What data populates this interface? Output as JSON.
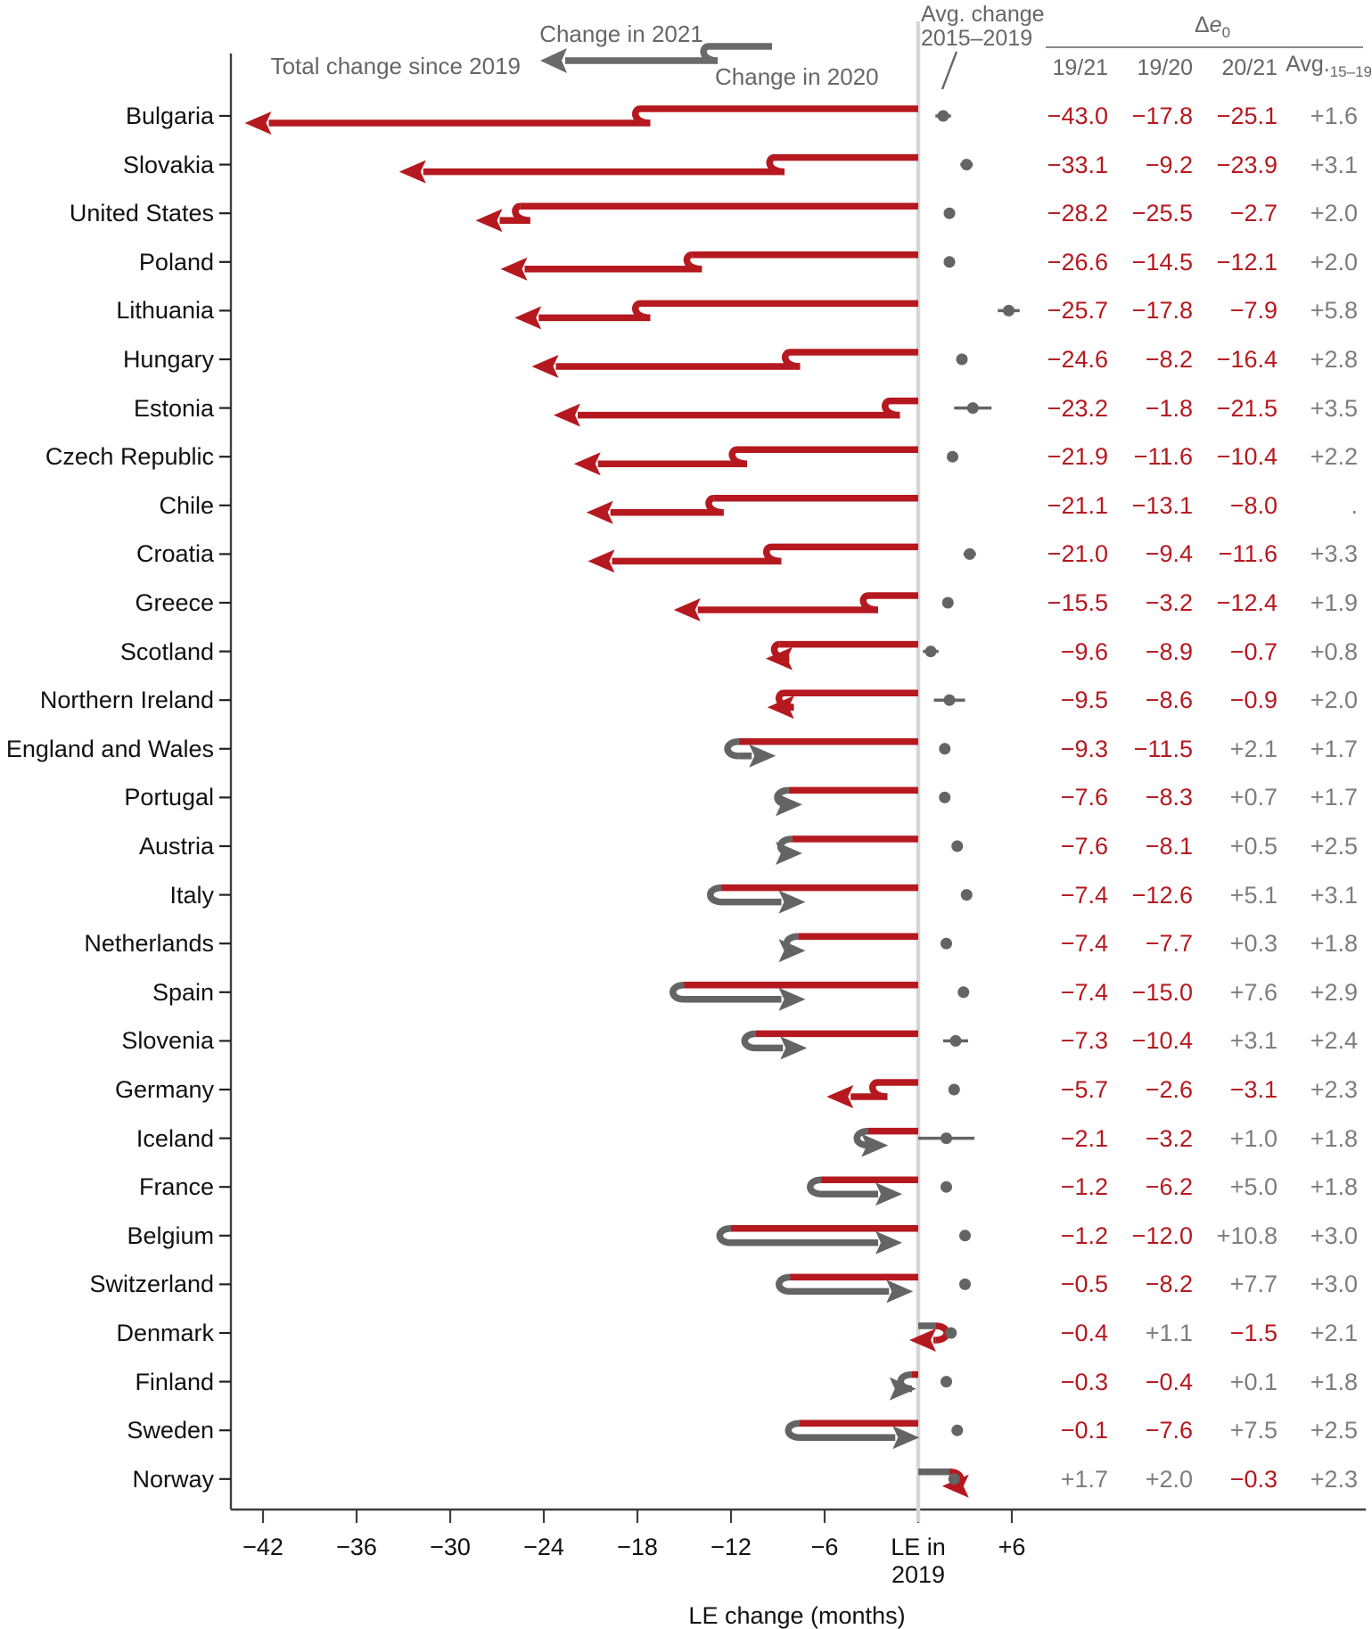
{
  "legend": {
    "change_2021": "Change in 2021",
    "total_change": "Total change since 2019",
    "change_2020": "Change in 2020"
  },
  "header": {
    "avg_change_line1": "Avg. change",
    "avg_change_line2": "2015–2019",
    "delta": "Δ",
    "delta_e": "e",
    "delta_sub": "0",
    "col_19_21": "19/21",
    "col_19_20": "19/20",
    "col_20_21": "20/21",
    "col_avg": "Avg.",
    "col_avg_sub": "15–19"
  },
  "axis": {
    "title": "LE change (months)",
    "ticks": [
      {
        "v": -42,
        "label": "−42"
      },
      {
        "v": -36,
        "label": "−36"
      },
      {
        "v": -30,
        "label": "−30"
      },
      {
        "v": -24,
        "label": "−24"
      },
      {
        "v": -18,
        "label": "−18"
      },
      {
        "v": -12,
        "label": "−12"
      },
      {
        "v": -6,
        "label": "−6"
      },
      {
        "v": 0,
        "label": "LE in",
        "label2": "2019"
      },
      {
        "v": 6,
        "label": "+6"
      }
    ]
  },
  "colors": {
    "red": "#b5191f",
    "gray": "#646464",
    "pos_text": "#7d7d7d",
    "header_text": "#666666",
    "baseline": "#d6d6d6",
    "axis": "#3d3d3d"
  },
  "chart_data": {
    "type": "arrow-step-chart",
    "unit": "months",
    "xlabel": "LE change (months)",
    "x_baseline_label": "LE in 2019",
    "xlim": [
      -44,
      28
    ],
    "note": "d19_21 = total LE change 2019-2021; d19_20 = change in 2020 (upper segment); d20_21 = change in 2021 (lower segment with arrowhead); avg_15_19 = avg annual change 2015-2019 shown as gray dot right of baseline; ci = approx half-width of whisker in months (0 = none visible)",
    "countries": [
      {
        "name": "Bulgaria",
        "d19_21": -43.0,
        "d19_20": -17.8,
        "d20_21": -25.1,
        "avg_15_19": 1.6,
        "ci": 0.5,
        "cols": [
          "−43.0",
          "−17.8",
          "−25.1",
          "+1.6"
        ]
      },
      {
        "name": "Slovakia",
        "d19_21": -33.1,
        "d19_20": -9.2,
        "d20_21": -23.9,
        "avg_15_19": 3.1,
        "ci": 0.4,
        "cols": [
          "−33.1",
          "−9.2",
          "−23.9",
          "+3.1"
        ]
      },
      {
        "name": "United States",
        "d19_21": -28.2,
        "d19_20": -25.5,
        "d20_21": -2.7,
        "avg_15_19": 2.0,
        "ci": 0,
        "cols": [
          "−28.2",
          "−25.5",
          "−2.7",
          "+2.0"
        ]
      },
      {
        "name": "Poland",
        "d19_21": -26.6,
        "d19_20": -14.5,
        "d20_21": -12.1,
        "avg_15_19": 2.0,
        "ci": 0,
        "cols": [
          "−26.6",
          "−14.5",
          "−12.1",
          "+2.0"
        ]
      },
      {
        "name": "Lithuania",
        "d19_21": -25.7,
        "d19_20": -17.8,
        "d20_21": -7.9,
        "avg_15_19": 5.8,
        "ci": 0.7,
        "cols": [
          "−25.7",
          "−17.8",
          "−7.9",
          "+5.8"
        ]
      },
      {
        "name": "Hungary",
        "d19_21": -24.6,
        "d19_20": -8.2,
        "d20_21": -16.4,
        "avg_15_19": 2.8,
        "ci": 0,
        "cols": [
          "−24.6",
          "−8.2",
          "−16.4",
          "+2.8"
        ]
      },
      {
        "name": "Estonia",
        "d19_21": -23.2,
        "d19_20": -1.8,
        "d20_21": -21.5,
        "avg_15_19": 3.5,
        "ci": 1.2,
        "cols": [
          "−23.2",
          "−1.8",
          "−21.5",
          "+3.5"
        ]
      },
      {
        "name": "Czech Republic",
        "d19_21": -21.9,
        "d19_20": -11.6,
        "d20_21": -10.4,
        "avg_15_19": 2.2,
        "ci": 0,
        "cols": [
          "−21.9",
          "−11.6",
          "−10.4",
          "+2.2"
        ]
      },
      {
        "name": "Chile",
        "d19_21": -21.1,
        "d19_20": -13.1,
        "d20_21": -8.0,
        "avg_15_19": null,
        "ci": 0,
        "cols": [
          "−21.1",
          "−13.1",
          "−8.0",
          "."
        ]
      },
      {
        "name": "Croatia",
        "d19_21": -21.0,
        "d19_20": -9.4,
        "d20_21": -11.6,
        "avg_15_19": 3.3,
        "ci": 0.4,
        "cols": [
          "−21.0",
          "−9.4",
          "−11.6",
          "+3.3"
        ]
      },
      {
        "name": "Greece",
        "d19_21": -15.5,
        "d19_20": -3.2,
        "d20_21": -12.4,
        "avg_15_19": 1.9,
        "ci": 0,
        "cols": [
          "−15.5",
          "−3.2",
          "−12.4",
          "+1.9"
        ]
      },
      {
        "name": "Scotland",
        "d19_21": -9.6,
        "d19_20": -8.9,
        "d20_21": -0.7,
        "avg_15_19": 0.8,
        "ci": 0.5,
        "cols": [
          "−9.6",
          "−8.9",
          "−0.7",
          "+0.8"
        ]
      },
      {
        "name": "Northern Ireland",
        "d19_21": -9.5,
        "d19_20": -8.6,
        "d20_21": -0.9,
        "avg_15_19": 2.0,
        "ci": 1.0,
        "cols": [
          "−9.5",
          "−8.6",
          "−0.9",
          "+2.0"
        ]
      },
      {
        "name": "England and Wales",
        "d19_21": -9.3,
        "d19_20": -11.5,
        "d20_21": 2.1,
        "avg_15_19": 1.7,
        "ci": 0,
        "cols": [
          "−9.3",
          "−11.5",
          "+2.1",
          "+1.7"
        ]
      },
      {
        "name": "Portugal",
        "d19_21": -7.6,
        "d19_20": -8.3,
        "d20_21": 0.7,
        "avg_15_19": 1.7,
        "ci": 0,
        "cols": [
          "−7.6",
          "−8.3",
          "+0.7",
          "+1.7"
        ]
      },
      {
        "name": "Austria",
        "d19_21": -7.6,
        "d19_20": -8.1,
        "d20_21": 0.5,
        "avg_15_19": 2.5,
        "ci": 0,
        "cols": [
          "−7.6",
          "−8.1",
          "+0.5",
          "+2.5"
        ]
      },
      {
        "name": "Italy",
        "d19_21": -7.4,
        "d19_20": -12.6,
        "d20_21": 5.1,
        "avg_15_19": 3.1,
        "ci": 0,
        "cols": [
          "−7.4",
          "−12.6",
          "+5.1",
          "+3.1"
        ]
      },
      {
        "name": "Netherlands",
        "d19_21": -7.4,
        "d19_20": -7.7,
        "d20_21": 0.3,
        "avg_15_19": 1.8,
        "ci": 0,
        "cols": [
          "−7.4",
          "−7.7",
          "+0.3",
          "+1.8"
        ]
      },
      {
        "name": "Spain",
        "d19_21": -7.4,
        "d19_20": -15.0,
        "d20_21": 7.6,
        "avg_15_19": 2.9,
        "ci": 0,
        "cols": [
          "−7.4",
          "−15.0",
          "+7.6",
          "+2.9"
        ]
      },
      {
        "name": "Slovenia",
        "d19_21": -7.3,
        "d19_20": -10.4,
        "d20_21": 3.1,
        "avg_15_19": 2.4,
        "ci": 0.8,
        "cols": [
          "−7.3",
          "−10.4",
          "+3.1",
          "+2.4"
        ]
      },
      {
        "name": "Germany",
        "d19_21": -5.7,
        "d19_20": -2.6,
        "d20_21": -3.1,
        "avg_15_19": 2.3,
        "ci": 0,
        "cols": [
          "−5.7",
          "−2.6",
          "−3.1",
          "+2.3"
        ]
      },
      {
        "name": "Iceland",
        "d19_21": -2.1,
        "d19_20": -3.2,
        "d20_21": 1.0,
        "avg_15_19": 1.8,
        "ci": 1.8,
        "cols": [
          "−2.1",
          "−3.2",
          "+1.0",
          "+1.8"
        ]
      },
      {
        "name": "France",
        "d19_21": -1.2,
        "d19_20": -6.2,
        "d20_21": 5.0,
        "avg_15_19": 1.8,
        "ci": 0,
        "cols": [
          "−1.2",
          "−6.2",
          "+5.0",
          "+1.8"
        ]
      },
      {
        "name": "Belgium",
        "d19_21": -1.2,
        "d19_20": -12.0,
        "d20_21": 10.8,
        "avg_15_19": 3.0,
        "ci": 0,
        "cols": [
          "−1.2",
          "−12.0",
          "+10.8",
          "+3.0"
        ]
      },
      {
        "name": "Switzerland",
        "d19_21": -0.5,
        "d19_20": -8.2,
        "d20_21": 7.7,
        "avg_15_19": 3.0,
        "ci": 0,
        "cols": [
          "−0.5",
          "−8.2",
          "+7.7",
          "+3.0"
        ]
      },
      {
        "name": "Denmark",
        "d19_21": -0.4,
        "d19_20": 1.1,
        "d20_21": -1.5,
        "avg_15_19": 2.1,
        "ci": 0,
        "cols": [
          "−0.4",
          "+1.1",
          "−1.5",
          "+2.1"
        ]
      },
      {
        "name": "Finland",
        "d19_21": -0.3,
        "d19_20": -0.4,
        "d20_21": 0.1,
        "avg_15_19": 1.8,
        "ci": 0,
        "cols": [
          "−0.3",
          "−0.4",
          "+0.1",
          "+1.8"
        ]
      },
      {
        "name": "Sweden",
        "d19_21": -0.1,
        "d19_20": -7.6,
        "d20_21": 7.5,
        "avg_15_19": 2.5,
        "ci": 0,
        "cols": [
          "−0.1",
          "−7.6",
          "+7.5",
          "+2.5"
        ]
      },
      {
        "name": "Norway",
        "d19_21": 1.7,
        "d19_20": 2.0,
        "d20_21": -0.3,
        "avg_15_19": 2.3,
        "ci": 0,
        "cols": [
          "+1.7",
          "+2.0",
          "−0.3",
          "+2.3"
        ]
      }
    ]
  }
}
